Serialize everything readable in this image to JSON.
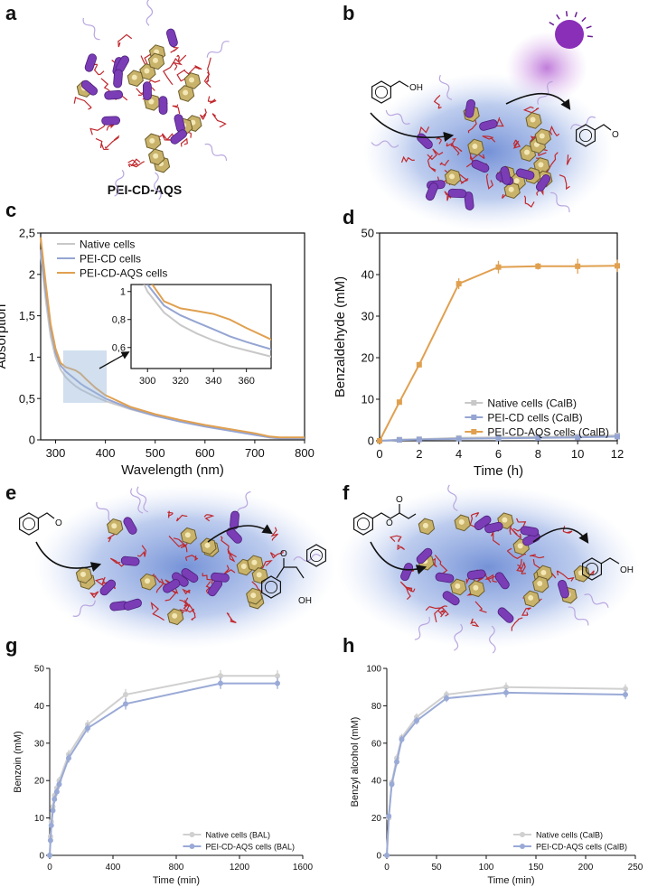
{
  "panel_labels": [
    "a",
    "b",
    "c",
    "d",
    "e",
    "f",
    "g",
    "h"
  ],
  "diagrams": {
    "a": {
      "title": "PEI-CD-AQS"
    },
    "b": {
      "substrate_label": "OH",
      "product_label": "O"
    },
    "e": {
      "substrate_label": "O",
      "product_labels": [
        "O",
        "OH"
      ]
    },
    "f": {
      "substrate_labels": [
        "O",
        "O"
      ],
      "product_label": "OH"
    }
  },
  "chart_data": [
    {
      "type": "line",
      "xlabel": "Wavelength (nm)",
      "ylabel": "Absorption",
      "x": [
        270,
        280,
        290,
        300,
        310,
        320,
        330,
        340,
        350,
        360,
        380,
        400,
        450,
        500,
        550,
        600,
        650,
        700,
        730,
        750,
        800
      ],
      "xlim": [
        270,
        800
      ],
      "xticks": [
        300,
        400,
        500,
        600,
        700,
        800
      ],
      "ylim": [
        0,
        2.5
      ],
      "yticks": [
        0,
        {
          "value": 0.5,
          "label": "0,5"
        },
        1,
        {
          "value": 1.5,
          "label": "1,5"
        },
        2,
        {
          "value": 2.5,
          "label": "2,5"
        }
      ],
      "legend": "upper left",
      "series": [
        {
          "name": "Native cells",
          "color": "#c8c8c8",
          "values": [
            2.25,
            1.7,
            1.25,
            1.0,
            0.85,
            0.76,
            0.7,
            0.65,
            0.61,
            0.58,
            0.52,
            0.47,
            0.37,
            0.29,
            0.23,
            0.17,
            0.12,
            0.07,
            0.03,
            0.02,
            0.02
          ]
        },
        {
          "name": "PEI-CD cells",
          "color": "#95a5d2",
          "values": [
            2.3,
            1.8,
            1.35,
            1.05,
            0.9,
            0.83,
            0.78,
            0.73,
            0.68,
            0.64,
            0.57,
            0.5,
            0.38,
            0.29,
            0.22,
            0.16,
            0.11,
            0.06,
            0.03,
            0.02,
            0.02
          ]
        },
        {
          "name": "PEI-CD-AQS cells",
          "color": "#e0a050",
          "values": [
            2.45,
            1.9,
            1.4,
            1.1,
            0.93,
            0.88,
            0.86,
            0.84,
            0.8,
            0.74,
            0.63,
            0.54,
            0.4,
            0.31,
            0.24,
            0.18,
            0.13,
            0.08,
            0.04,
            0.03,
            0.03
          ]
        }
      ],
      "inset": {
        "xlim": [
          290,
          375
        ],
        "xticks": [
          300,
          320,
          340,
          360
        ],
        "ylim": [
          0.45,
          1.05
        ],
        "yticks": [
          {
            "value": 0.6,
            "label": "0,6"
          },
          {
            "value": 0.8,
            "label": "0,8"
          },
          1
        ]
      }
    },
    {
      "type": "line",
      "xlabel": "Time (h)",
      "ylabel": "Benzaldehyde (mM)",
      "marker": "square",
      "x": [
        0,
        1,
        2,
        4,
        6,
        8,
        10,
        12
      ],
      "xlim": [
        0,
        12
      ],
      "xticks": [
        0,
        2,
        4,
        6,
        8,
        10,
        12
      ],
      "ylim": [
        0,
        50
      ],
      "yticks": [
        0,
        10,
        20,
        30,
        40,
        50
      ],
      "legend": "lower right",
      "series": [
        {
          "name": "Native cells (CalB)",
          "color": "#c8c8c8",
          "values": [
            0,
            0.3,
            0.4,
            0.7,
            0.8,
            0.9,
            1.0,
            1.3
          ],
          "errors": [
            0,
            0.2,
            0.2,
            0.3,
            0.3,
            0.3,
            0.3,
            0.4
          ]
        },
        {
          "name": "PEI-CD cells (CalB)",
          "color": "#95a5d2",
          "values": [
            0,
            0.2,
            0.3,
            0.5,
            0.6,
            0.7,
            0.8,
            1.0
          ],
          "errors": [
            0,
            0.2,
            0.2,
            0.3,
            0.3,
            0.3,
            0.3,
            0.3
          ]
        },
        {
          "name": "PEI-CD-AQS cells (CalB)",
          "color": "#e0a050",
          "values": [
            0,
            9.3,
            18.3,
            37.8,
            41.8,
            42.0,
            42.0,
            42.1
          ],
          "errors": [
            0,
            0.5,
            0.7,
            1.3,
            1.5,
            0.8,
            1.8,
            1.5
          ]
        }
      ]
    },
    {
      "type": "line",
      "xlabel": "Time (min)",
      "ylabel": "Benzoin (mM)",
      "marker": "circle",
      "x": [
        0,
        5,
        10,
        20,
        30,
        45,
        60,
        120,
        240,
        480,
        1080,
        1440
      ],
      "xlim": [
        0,
        1600
      ],
      "xticks": [
        0,
        400,
        800,
        1200,
        1600
      ],
      "ylim": [
        0,
        50
      ],
      "yticks": [
        0,
        10,
        20,
        30,
        40,
        50
      ],
      "legend": "lower right",
      "series": [
        {
          "name": "Native cells (BAL)",
          "color": "#d0d0d0",
          "values": [
            0,
            5,
            9,
            13,
            16,
            18,
            20,
            27,
            35,
            43,
            48,
            48
          ],
          "errors": [
            0,
            1,
            1,
            1,
            1,
            1,
            1,
            1.2,
            1.2,
            1.5,
            1.5,
            1.5
          ]
        },
        {
          "name": "PEI-CD-AQS cells (BAL)",
          "color": "#9aaad6",
          "values": [
            0,
            4,
            8,
            12,
            15,
            17,
            19,
            26,
            34,
            40.5,
            46,
            46
          ],
          "errors": [
            0,
            1,
            1,
            1,
            1,
            1,
            1,
            1.2,
            1.2,
            1.5,
            1.5,
            1.5
          ]
        }
      ]
    },
    {
      "type": "line",
      "xlabel": "Time (min)",
      "ylabel": "Benzyl alcohol (mM)",
      "marker": "circle",
      "x": [
        0,
        2,
        5,
        10,
        15,
        30,
        60,
        120,
        240
      ],
      "xlim": [
        0,
        250
      ],
      "xticks": [
        0,
        50,
        100,
        150,
        200,
        250
      ],
      "ylim": [
        0,
        100
      ],
      "yticks": [
        0,
        20,
        40,
        60,
        80,
        100
      ],
      "legend": "lower right",
      "series": [
        {
          "name": "Native cells (CalB)",
          "color": "#d0d0d0",
          "values": [
            0,
            20,
            39,
            52,
            63,
            74,
            86,
            90,
            89
          ],
          "errors": [
            0,
            2,
            2,
            2,
            2,
            2,
            2,
            2.5,
            2.5
          ]
        },
        {
          "name": "PEI-CD-AQS cells (CalB)",
          "color": "#9aaad6",
          "values": [
            0,
            21,
            38,
            50,
            62,
            72,
            84,
            87,
            86
          ],
          "errors": [
            0,
            2,
            2,
            2,
            2,
            2,
            2,
            2.5,
            2.5
          ]
        }
      ]
    }
  ]
}
